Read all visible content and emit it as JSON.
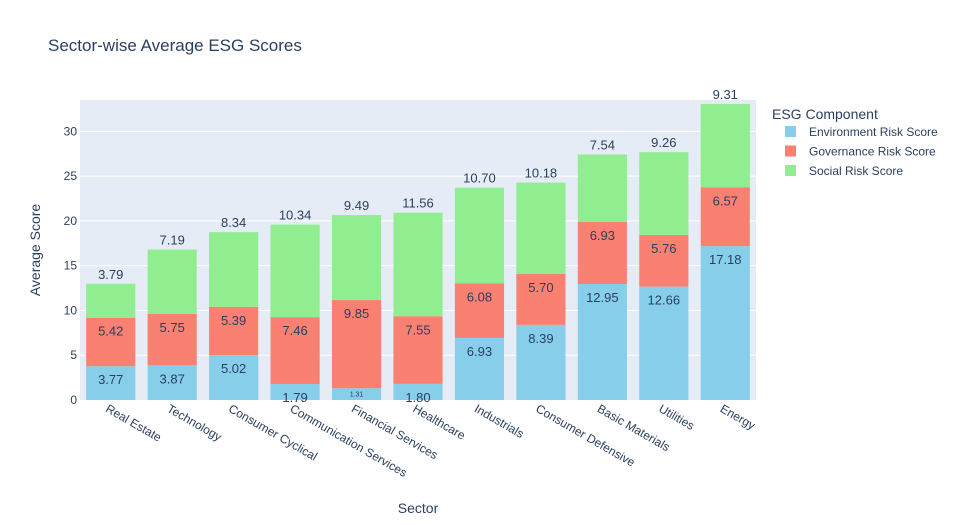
{
  "chart_data": {
    "type": "bar",
    "stacked": true,
    "title": "Sector-wise Average ESG Scores",
    "xlabel": "Sector",
    "ylabel": "Average Score",
    "ylim": [
      0,
      33.5
    ],
    "yticks": [
      0,
      5,
      10,
      15,
      20,
      25,
      30
    ],
    "grid": true,
    "legend_title": "ESG Component",
    "legend_position": "right",
    "categories": [
      "Real Estate",
      "Technology",
      "Consumer Cyclical",
      "Communication Services",
      "Financial Services",
      "Healthcare",
      "Industrials",
      "Consumer Defensive",
      "Basic Materials",
      "Utilities",
      "Energy"
    ],
    "series": [
      {
        "name": "Environment Risk Score",
        "color": "#87ceeb",
        "values": [
          3.77,
          3.87,
          5.02,
          1.79,
          1.31,
          1.8,
          6.93,
          8.39,
          12.95,
          12.66,
          17.18
        ],
        "labels": [
          "3.77",
          "3.87",
          "5.02",
          "1.79",
          "1.31",
          "1.80",
          "6.93",
          "8.39",
          "12.95",
          "12.66",
          "17.18"
        ]
      },
      {
        "name": "Governance Risk Score",
        "color": "#fa8072",
        "values": [
          5.42,
          5.75,
          5.39,
          7.46,
          9.85,
          7.55,
          6.08,
          5.7,
          6.93,
          5.76,
          6.57
        ],
        "labels": [
          "5.42",
          "5.75",
          "5.39",
          "7.46",
          "9.85",
          "7.55",
          "6.08",
          "5.70",
          "6.93",
          "5.76",
          "6.57"
        ]
      },
      {
        "name": "Social Risk Score",
        "color": "#90ee90",
        "values": [
          3.79,
          7.19,
          8.34,
          10.34,
          9.49,
          11.56,
          10.7,
          10.18,
          7.54,
          9.26,
          9.31
        ],
        "labels": [
          "3.79",
          "7.19",
          "8.34",
          "10.34",
          "9.49",
          "11.56",
          "10.70",
          "10.18",
          "7.54",
          "9.26",
          "9.31"
        ]
      }
    ]
  }
}
